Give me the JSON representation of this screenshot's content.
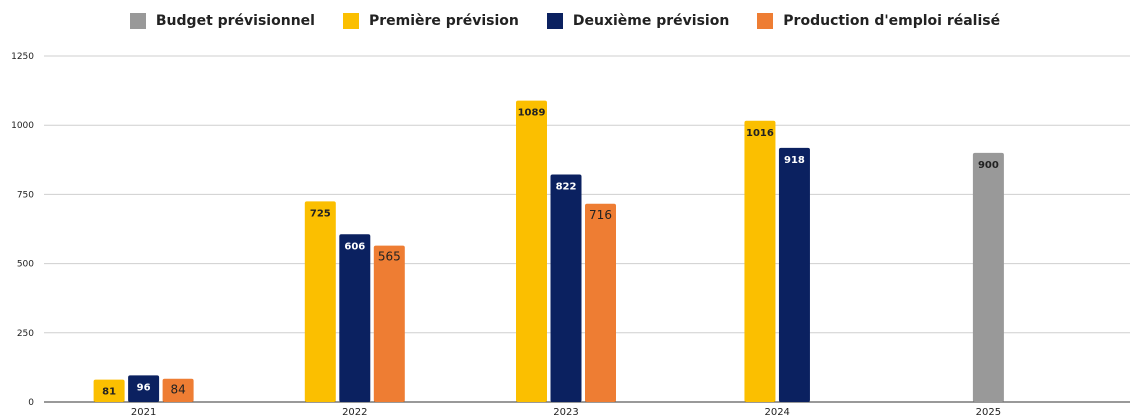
{
  "chart_data": {
    "type": "bar",
    "categories": [
      "2021",
      "2022",
      "2023",
      "2024",
      "2025"
    ],
    "series": [
      {
        "name": "Budget prévisionnel",
        "color": "#999999",
        "label_color": "#222222",
        "values": [
          null,
          null,
          null,
          null,
          900
        ]
      },
      {
        "name": "Première prévision",
        "color": "#fbbf00",
        "label_color": "#222222",
        "values": [
          81,
          725,
          1089,
          1016,
          null
        ]
      },
      {
        "name": "Deuxième prévision",
        "color": "#0b2160",
        "label_color": "#ffffff",
        "values": [
          96,
          606,
          822,
          918,
          null
        ]
      },
      {
        "name": "Production d'emploi réalisé",
        "color": "#ee7d33",
        "label_color": "#222222",
        "values": [
          84,
          565,
          716,
          null,
          null
        ]
      }
    ],
    "ylim": [
      0,
      1250
    ],
    "yticks": [
      0,
      250,
      500,
      750,
      1000,
      1250
    ],
    "grid": true,
    "legend_position": "top"
  }
}
